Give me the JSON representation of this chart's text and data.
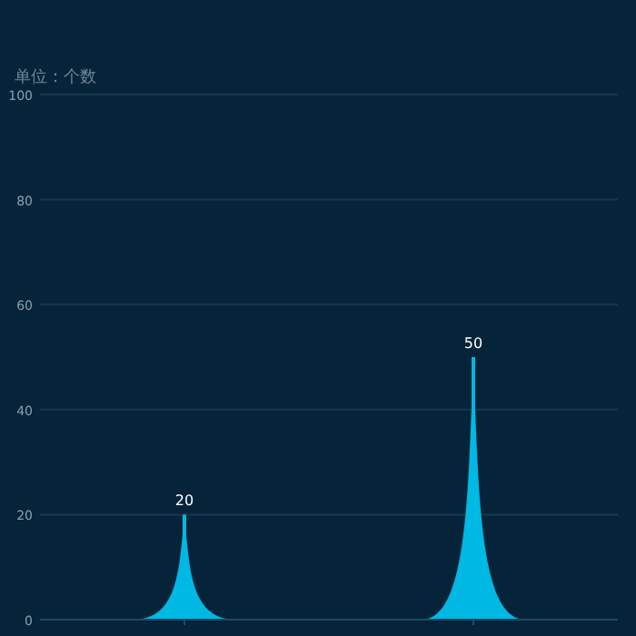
{
  "chart_data": {
    "type": "bar",
    "subtitle": "单位：个数",
    "categories": [
      null,
      null
    ],
    "values": [
      20,
      50
    ],
    "color": "#00b8e4",
    "data_labels": true,
    "ylim": [
      0,
      100
    ],
    "yticks": [
      0,
      20,
      40,
      60,
      80,
      100
    ],
    "grid": "y"
  }
}
